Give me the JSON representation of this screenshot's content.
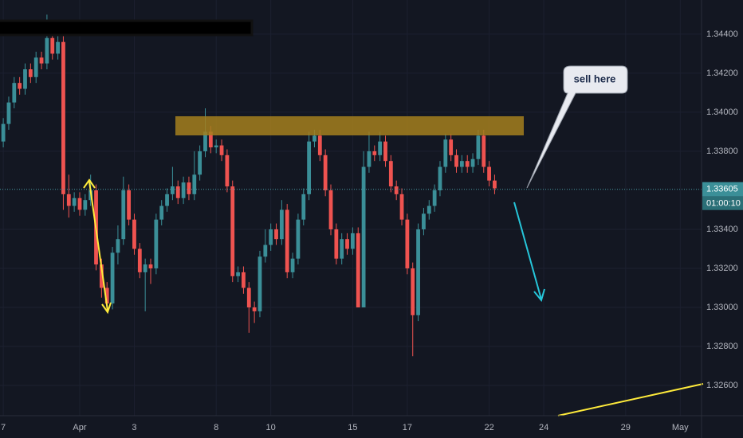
{
  "chart_data": {
    "type": "candlestick",
    "up_color": "#3b8f98",
    "down_color": "#ef5350",
    "open": [
      1.3385,
      1.3394,
      1.3405,
      1.3415,
      1.3412,
      1.3422,
      1.3418,
      1.3428,
      1.3425,
      1.3438,
      1.343,
      1.3436,
      1.3358,
      1.3352,
      1.3356,
      1.335,
      1.3355,
      1.336,
      1.3322,
      1.331,
      1.3302,
      1.3328,
      1.3335,
      1.336,
      1.3345,
      1.333,
      1.3318,
      1.3322,
      1.332,
      1.3345,
      1.3352,
      1.3358,
      1.3362,
      1.3356,
      1.3364,
      1.3358,
      1.3368,
      1.338,
      1.339,
      1.3382,
      1.3383,
      1.3378,
      1.3362,
      1.3316,
      1.3318,
      1.331,
      1.33,
      1.3298,
      1.3326,
      1.3332,
      1.334,
      1.3335,
      1.335,
      1.3318,
      1.3325,
      1.3345,
      1.3358,
      1.3385,
      1.3388,
      1.3378,
      1.336,
      1.334,
      1.3325,
      1.3335,
      1.333,
      1.3338,
      1.33,
      1.3372,
      1.338,
      1.3378,
      1.3385,
      1.3375,
      1.3362,
      1.3358,
      1.3345,
      1.332,
      1.3296,
      1.334,
      1.3348,
      1.3352,
      1.336,
      1.3372,
      1.3386,
      1.3378,
      1.3372,
      1.3375,
      1.3372,
      1.3376,
      1.3388,
      1.3372,
      1.3365
    ],
    "high": [
      1.3397,
      1.3408,
      1.3418,
      1.3418,
      1.3425,
      1.3425,
      1.3431,
      1.3431,
      1.345,
      1.3441,
      1.344,
      1.3439,
      1.3368,
      1.3359,
      1.3359,
      1.3358,
      1.3368,
      1.3363,
      1.3325,
      1.3313,
      1.3331,
      1.3342,
      1.3367,
      1.3363,
      1.3348,
      1.3333,
      1.3325,
      1.3325,
      1.3348,
      1.3355,
      1.3361,
      1.3372,
      1.3365,
      1.3367,
      1.3367,
      1.338,
      1.3383,
      1.3402,
      1.3393,
      1.3386,
      1.3386,
      1.3381,
      1.3365,
      1.3321,
      1.3321,
      1.3313,
      1.3303,
      1.3329,
      1.334,
      1.3343,
      1.3343,
      1.3355,
      1.3353,
      1.3328,
      1.3348,
      1.3361,
      1.339,
      1.3391,
      1.3391,
      1.3381,
      1.3363,
      1.3343,
      1.3338,
      1.3338,
      1.3341,
      1.3341,
      1.338,
      1.339,
      1.3383,
      1.339,
      1.3388,
      1.3378,
      1.3365,
      1.3361,
      1.3348,
      1.3323,
      1.3343,
      1.3351,
      1.3355,
      1.3363,
      1.3375,
      1.3389,
      1.3389,
      1.3381,
      1.3378,
      1.3378,
      1.3379,
      1.3391,
      1.3391,
      1.3375,
      1.3368
    ],
    "low": [
      1.3382,
      1.3391,
      1.3402,
      1.3409,
      1.3409,
      1.3415,
      1.3415,
      1.3422,
      1.3422,
      1.3427,
      1.3427,
      1.335,
      1.3346,
      1.3349,
      1.3347,
      1.3347,
      1.3352,
      1.3319,
      1.3305,
      1.3298,
      1.3299,
      1.3322,
      1.3332,
      1.3342,
      1.3327,
      1.3315,
      1.3298,
      1.3312,
      1.3317,
      1.3342,
      1.3349,
      1.3355,
      1.3353,
      1.3353,
      1.3355,
      1.3355,
      1.3365,
      1.3377,
      1.3379,
      1.3379,
      1.3375,
      1.3359,
      1.3313,
      1.3313,
      1.3307,
      1.3287,
      1.3292,
      1.3295,
      1.3323,
      1.3329,
      1.3332,
      1.3332,
      1.3315,
      1.3315,
      1.3322,
      1.3342,
      1.3355,
      1.3382,
      1.3375,
      1.3357,
      1.3337,
      1.3322,
      1.3322,
      1.3327,
      1.3327,
      1.33,
      1.33,
      1.3369,
      1.3375,
      1.3375,
      1.3372,
      1.3359,
      1.3355,
      1.3342,
      1.3317,
      1.3275,
      1.3293,
      1.3337,
      1.3345,
      1.3349,
      1.3357,
      1.3369,
      1.3375,
      1.3369,
      1.3369,
      1.3369,
      1.3369,
      1.3373,
      1.3369,
      1.3362,
      1.3358
    ],
    "close": [
      1.3394,
      1.3405,
      1.3415,
      1.3412,
      1.3422,
      1.3418,
      1.3428,
      1.3425,
      1.3438,
      1.343,
      1.3436,
      1.3358,
      1.3352,
      1.3356,
      1.335,
      1.3355,
      1.336,
      1.3322,
      1.331,
      1.3302,
      1.3328,
      1.3335,
      1.336,
      1.3345,
      1.333,
      1.3318,
      1.3322,
      1.332,
      1.3345,
      1.3352,
      1.3358,
      1.3362,
      1.3356,
      1.3364,
      1.3358,
      1.3368,
      1.338,
      1.339,
      1.3382,
      1.3383,
      1.3378,
      1.3362,
      1.3316,
      1.3318,
      1.331,
      1.33,
      1.3298,
      1.3326,
      1.3332,
      1.334,
      1.3335,
      1.335,
      1.3318,
      1.3325,
      1.3345,
      1.3358,
      1.3385,
      1.3388,
      1.3378,
      1.336,
      1.334,
      1.3325,
      1.3335,
      1.333,
      1.3338,
      1.33,
      1.3372,
      1.338,
      1.3378,
      1.3385,
      1.3375,
      1.3362,
      1.3358,
      1.3345,
      1.332,
      1.3296,
      1.334,
      1.3348,
      1.3352,
      1.336,
      1.3372,
      1.3386,
      1.3378,
      1.3372,
      1.3375,
      1.3372,
      1.3376,
      1.3388,
      1.3372,
      1.3365,
      1.3361
    ],
    "xlim": [
      -0.6,
      127.9
    ],
    "xticks": [
      {
        "value": 0,
        "label": "7"
      },
      {
        "value": 14,
        "label": "Apr"
      },
      {
        "value": 24,
        "label": "3"
      },
      {
        "value": 39,
        "label": "8"
      },
      {
        "value": 49,
        "label": "10"
      },
      {
        "value": 64,
        "label": "15"
      },
      {
        "value": 74,
        "label": "17"
      },
      {
        "value": 89,
        "label": "22"
      },
      {
        "value": 99,
        "label": "24"
      },
      {
        "value": 114,
        "label": "29"
      },
      {
        "value": 124,
        "label": "May"
      }
    ],
    "ylim": [
      1.32445,
      1.34575
    ],
    "yticks": [
      {
        "value": 1.326,
        "label": "1.32600"
      },
      {
        "value": 1.328,
        "label": "1.32800"
      },
      {
        "value": 1.33,
        "label": "1.33000"
      },
      {
        "value": 1.332,
        "label": "1.33200"
      },
      {
        "value": 1.334,
        "label": "1.33400"
      },
      {
        "value": 1.338,
        "label": "1.33800"
      },
      {
        "value": 1.34,
        "label": "1.34000"
      },
      {
        "value": 1.342,
        "label": "1.34200"
      },
      {
        "value": 1.344,
        "label": "1.34400"
      }
    ],
    "last_price": {
      "value": 1.33605,
      "label": "1.33605"
    },
    "countdown": "01:00:10",
    "annotation": "sell here"
  }
}
